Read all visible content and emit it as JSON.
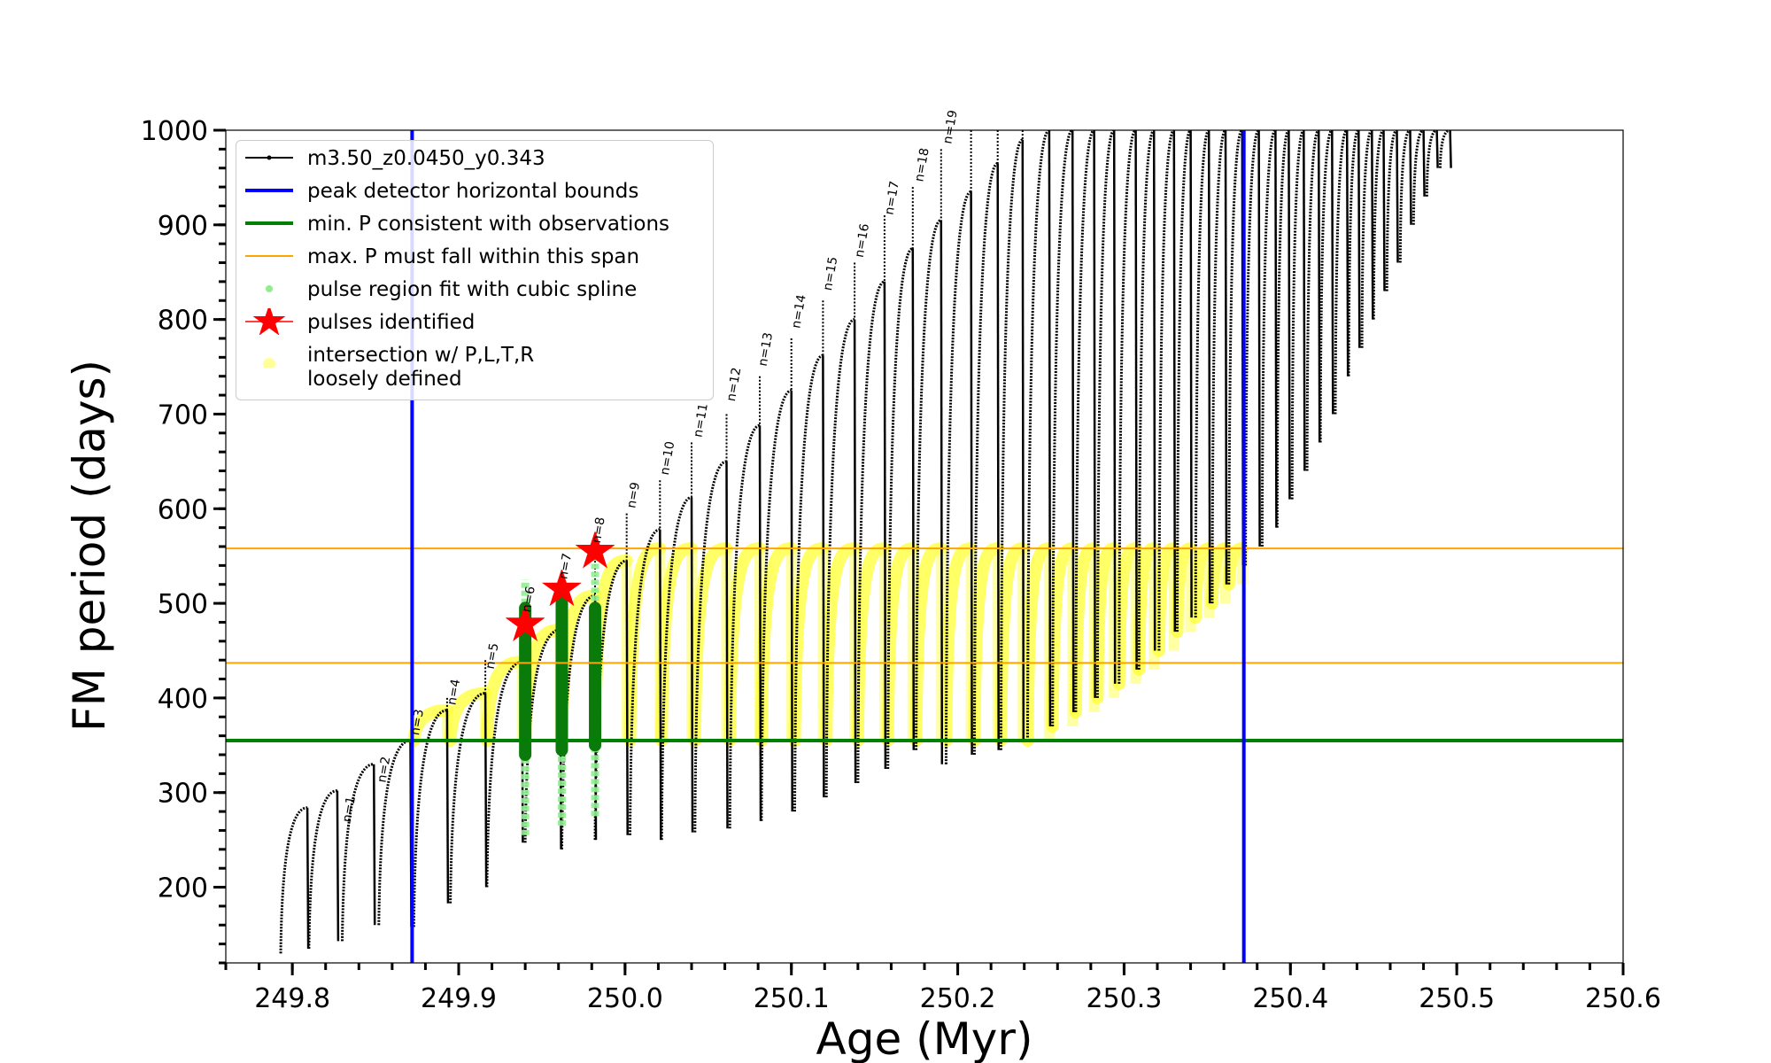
{
  "chart_data": {
    "type": "line",
    "xlabel": "Age (Myr)",
    "ylabel": "FM period (days)",
    "xlim": [
      249.76,
      250.6
    ],
    "ylim": [
      120,
      1000
    ],
    "xticks": [
      249.8,
      249.9,
      250.0,
      250.1,
      250.2,
      250.3,
      250.4,
      250.5,
      250.6
    ],
    "xtick_labels": [
      "249.8",
      "249.9",
      "250.0",
      "250.1",
      "250.2",
      "250.3",
      "250.4",
      "250.5",
      "250.6"
    ],
    "yticks": [
      200,
      300,
      400,
      500,
      600,
      700,
      800,
      900,
      1000
    ],
    "ytick_labels": [
      "200",
      "300",
      "400",
      "500",
      "600",
      "700",
      "800",
      "900",
      "1000"
    ],
    "legend_position": "upper-left",
    "legend": [
      {
        "label": "m3.50_z0.0450_y0.343",
        "kind": "line-marker",
        "color": "#000000"
      },
      {
        "label": "peak detector horizontal bounds",
        "kind": "line",
        "color": "#0000ff"
      },
      {
        "label": "min. P consistent with observations",
        "kind": "line",
        "color": "#008000"
      },
      {
        "label": "max. P must fall within this span",
        "kind": "thin-line",
        "color": "#ffa500"
      },
      {
        "label": "pulse region fit with cubic spline",
        "kind": "dot",
        "color": "#90ee90"
      },
      {
        "label": "pulses identified",
        "kind": "star",
        "color": "#ff0000"
      },
      {
        "label": "intersection w/ P,L,T,R\nloosely defined",
        "kind": "dot",
        "color": "#ffff99"
      }
    ],
    "vertical_lines": [
      {
        "x": 249.872,
        "color": "#0000ff",
        "label": "peak detector horizontal bounds"
      },
      {
        "x": 250.372,
        "color": "#0000ff",
        "label": "peak detector horizontal bounds"
      }
    ],
    "horizontal_lines": [
      {
        "y": 355,
        "color": "#008000",
        "label": "min. P consistent with observations"
      },
      {
        "y": 437,
        "color": "#ffa500",
        "label": "max. P must fall within this span"
      },
      {
        "y": 558,
        "color": "#ffa500",
        "label": "max. P must fall within this span"
      }
    ],
    "pulse_series": {
      "name": "m3.50_z0.0450_y0.343",
      "start_age": [
        249.793,
        249.81,
        249.83,
        249.852,
        249.873,
        249.895,
        249.917,
        249.94,
        249.962,
        249.982,
        250.003,
        250.022,
        250.042,
        250.063,
        250.082,
        250.102,
        250.121,
        250.14,
        250.158,
        250.175,
        250.193,
        250.21,
        250.226,
        250.242,
        250.257,
        250.271,
        250.284,
        250.297,
        250.309,
        250.321,
        250.332,
        250.343,
        250.353,
        250.363,
        250.373,
        250.383,
        250.392,
        250.401,
        250.41,
        250.418,
        250.427,
        250.435,
        250.443,
        250.45,
        250.458,
        250.466,
        250.474,
        250.482,
        250.49
      ],
      "start_period": [
        130,
        135,
        143,
        160,
        158,
        183,
        200,
        247,
        240,
        250,
        255,
        250,
        258,
        262,
        270,
        280,
        295,
        310,
        325,
        345,
        330,
        340,
        345,
        355,
        370,
        385,
        400,
        415,
        430,
        450,
        470,
        485,
        500,
        520,
        540,
        560,
        580,
        610,
        640,
        670,
        700,
        740,
        770,
        800,
        830,
        860,
        900,
        930,
        960
      ],
      "peak_period": [
        284,
        302,
        330,
        355,
        387,
        405,
        438,
        472,
        508,
        545,
        578,
        612,
        650,
        688,
        725,
        762,
        800,
        840,
        875,
        905,
        935,
        965,
        990,
        1000,
        1000,
        1000,
        1000,
        1000,
        1000,
        1000,
        1000,
        1000,
        1000,
        1000,
        1000,
        1000,
        1000,
        1000,
        1000,
        1000,
        1000,
        1000,
        1000,
        1000,
        1000,
        1000,
        1000,
        1000,
        1000
      ],
      "peak_age_offset": [
        0.016,
        0.017,
        0.019,
        0.019,
        0.02,
        0.021,
        0.021,
        0.021,
        0.02,
        0.019,
        0.018,
        0.018,
        0.019,
        0.018,
        0.018,
        0.017,
        0.017,
        0.016,
        0.015,
        0.015,
        0.015,
        0.014,
        0.013,
        0.013,
        0.012,
        0.011,
        0.01,
        0.01,
        0.009,
        0.009,
        0.008,
        0.008,
        0.008,
        0.008,
        0.008,
        0.008,
        0.007,
        0.007,
        0.007,
        0.007,
        0.007,
        0.006,
        0.006,
        0.006,
        0.006,
        0.006,
        0.006,
        0.006,
        0.006
      ],
      "spike_peak": [
        null,
        null,
        null,
        355,
        400,
        440,
        500,
        520,
        560,
        595,
        630,
        670,
        700,
        740,
        780,
        820,
        860,
        910,
        940,
        980,
        1000,
        1000,
        1000,
        1000,
        1000,
        1000,
        1000,
        1000,
        1000,
        1000,
        1000,
        1000,
        1000,
        1000,
        1000,
        1000,
        1000,
        1000,
        1000,
        1000,
        1000,
        1000,
        1000,
        1000,
        1000,
        1000,
        1000,
        1000,
        1000
      ]
    },
    "mode_labels": [
      {
        "text": "n=1",
        "x": 249.835,
        "y": 268
      },
      {
        "text": "n=2",
        "x": 249.856,
        "y": 310
      },
      {
        "text": "n=3",
        "x": 249.876,
        "y": 360
      },
      {
        "text": "n=4",
        "x": 249.898,
        "y": 392
      },
      {
        "text": "n=5",
        "x": 249.921,
        "y": 430
      },
      {
        "text": "n=6",
        "x": 249.943,
        "y": 490
      },
      {
        "text": "n=7",
        "x": 249.965,
        "y": 525
      },
      {
        "text": "n=8",
        "x": 249.985,
        "y": 563
      },
      {
        "text": "n=9",
        "x": 250.006,
        "y": 600
      },
      {
        "text": "n=10",
        "x": 250.026,
        "y": 635
      },
      {
        "text": "n=11",
        "x": 250.046,
        "y": 675
      },
      {
        "text": "n=12",
        "x": 250.066,
        "y": 713
      },
      {
        "text": "n=13",
        "x": 250.085,
        "y": 750
      },
      {
        "text": "n=14",
        "x": 250.105,
        "y": 790
      },
      {
        "text": "n=15",
        "x": 250.124,
        "y": 830
      },
      {
        "text": "n=16",
        "x": 250.143,
        "y": 865
      },
      {
        "text": "n=17",
        "x": 250.161,
        "y": 910
      },
      {
        "text": "n=18",
        "x": 250.179,
        "y": 945
      },
      {
        "text": "n=19",
        "x": 250.196,
        "y": 985
      }
    ],
    "pulses_identified": [
      {
        "x": 249.94,
        "y": 478
      },
      {
        "x": 249.962,
        "y": 515
      },
      {
        "x": 249.982,
        "y": 555
      }
    ],
    "dark_green_pulses": [
      {
        "x": 249.94,
        "ymin": 340,
        "ymax": 495
      },
      {
        "x": 249.962,
        "ymin": 345,
        "ymax": 500
      },
      {
        "x": 249.982,
        "ymin": 350,
        "ymax": 495
      }
    ],
    "light_green_spans": [
      {
        "x": 249.94,
        "ymin": 255,
        "ymax": 525
      },
      {
        "x": 249.962,
        "ymin": 265,
        "ymax": 520
      },
      {
        "x": 249.982,
        "ymin": 275,
        "ymax": 560
      }
    ],
    "intersection_range": {
      "xmin": 249.872,
      "xmax": 250.372,
      "ymin": 355,
      "ymax": 558
    }
  }
}
